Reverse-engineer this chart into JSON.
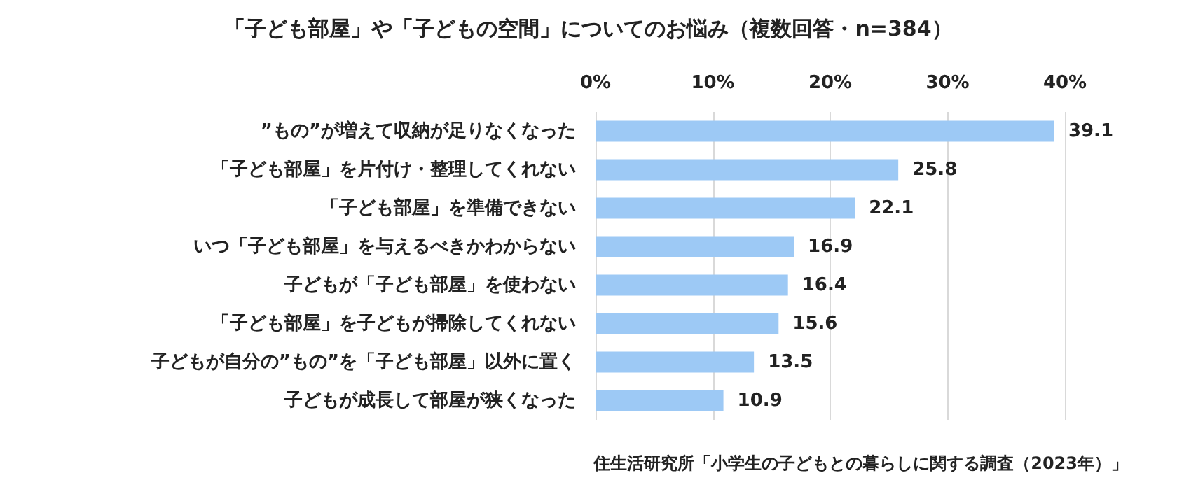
{
  "chart_data": {
    "type": "bar",
    "orientation": "horizontal",
    "title": "「子ども部屋」や「子どもの空間」についてのお悩み（複数回答・n=384）",
    "categories": [
      "”もの”が増えて収納が足りなくなった",
      "「子ども部屋」を片付け・整理してくれない",
      "「子ども部屋」を準備できない",
      "いつ「子ども部屋」を与えるべきかわからない",
      "子どもが「子ども部屋」を使わない",
      "「子ども部屋」を子どもが掃除してくれない",
      "子どもが自分の”もの”を「子ども部屋」以外に置く",
      "子どもが成長して部屋が狭くなった"
    ],
    "values": [
      39.1,
      25.8,
      22.1,
      16.9,
      16.4,
      15.6,
      13.5,
      10.9
    ],
    "color": "#9dc9f5",
    "xlim": [
      0,
      40
    ],
    "xticks": [
      {
        "value": 0,
        "label": "0%"
      },
      {
        "value": 10,
        "label": "10%"
      },
      {
        "value": 20,
        "label": "20%"
      },
      {
        "value": 30,
        "label": "30%"
      },
      {
        "value": 40,
        "label": "40%"
      }
    ],
    "grid": "x",
    "data_labels": true,
    "annotations": [
      "住生活研究所「小学生の子どもとの暮らしに関する調査（2023年）」"
    ]
  }
}
